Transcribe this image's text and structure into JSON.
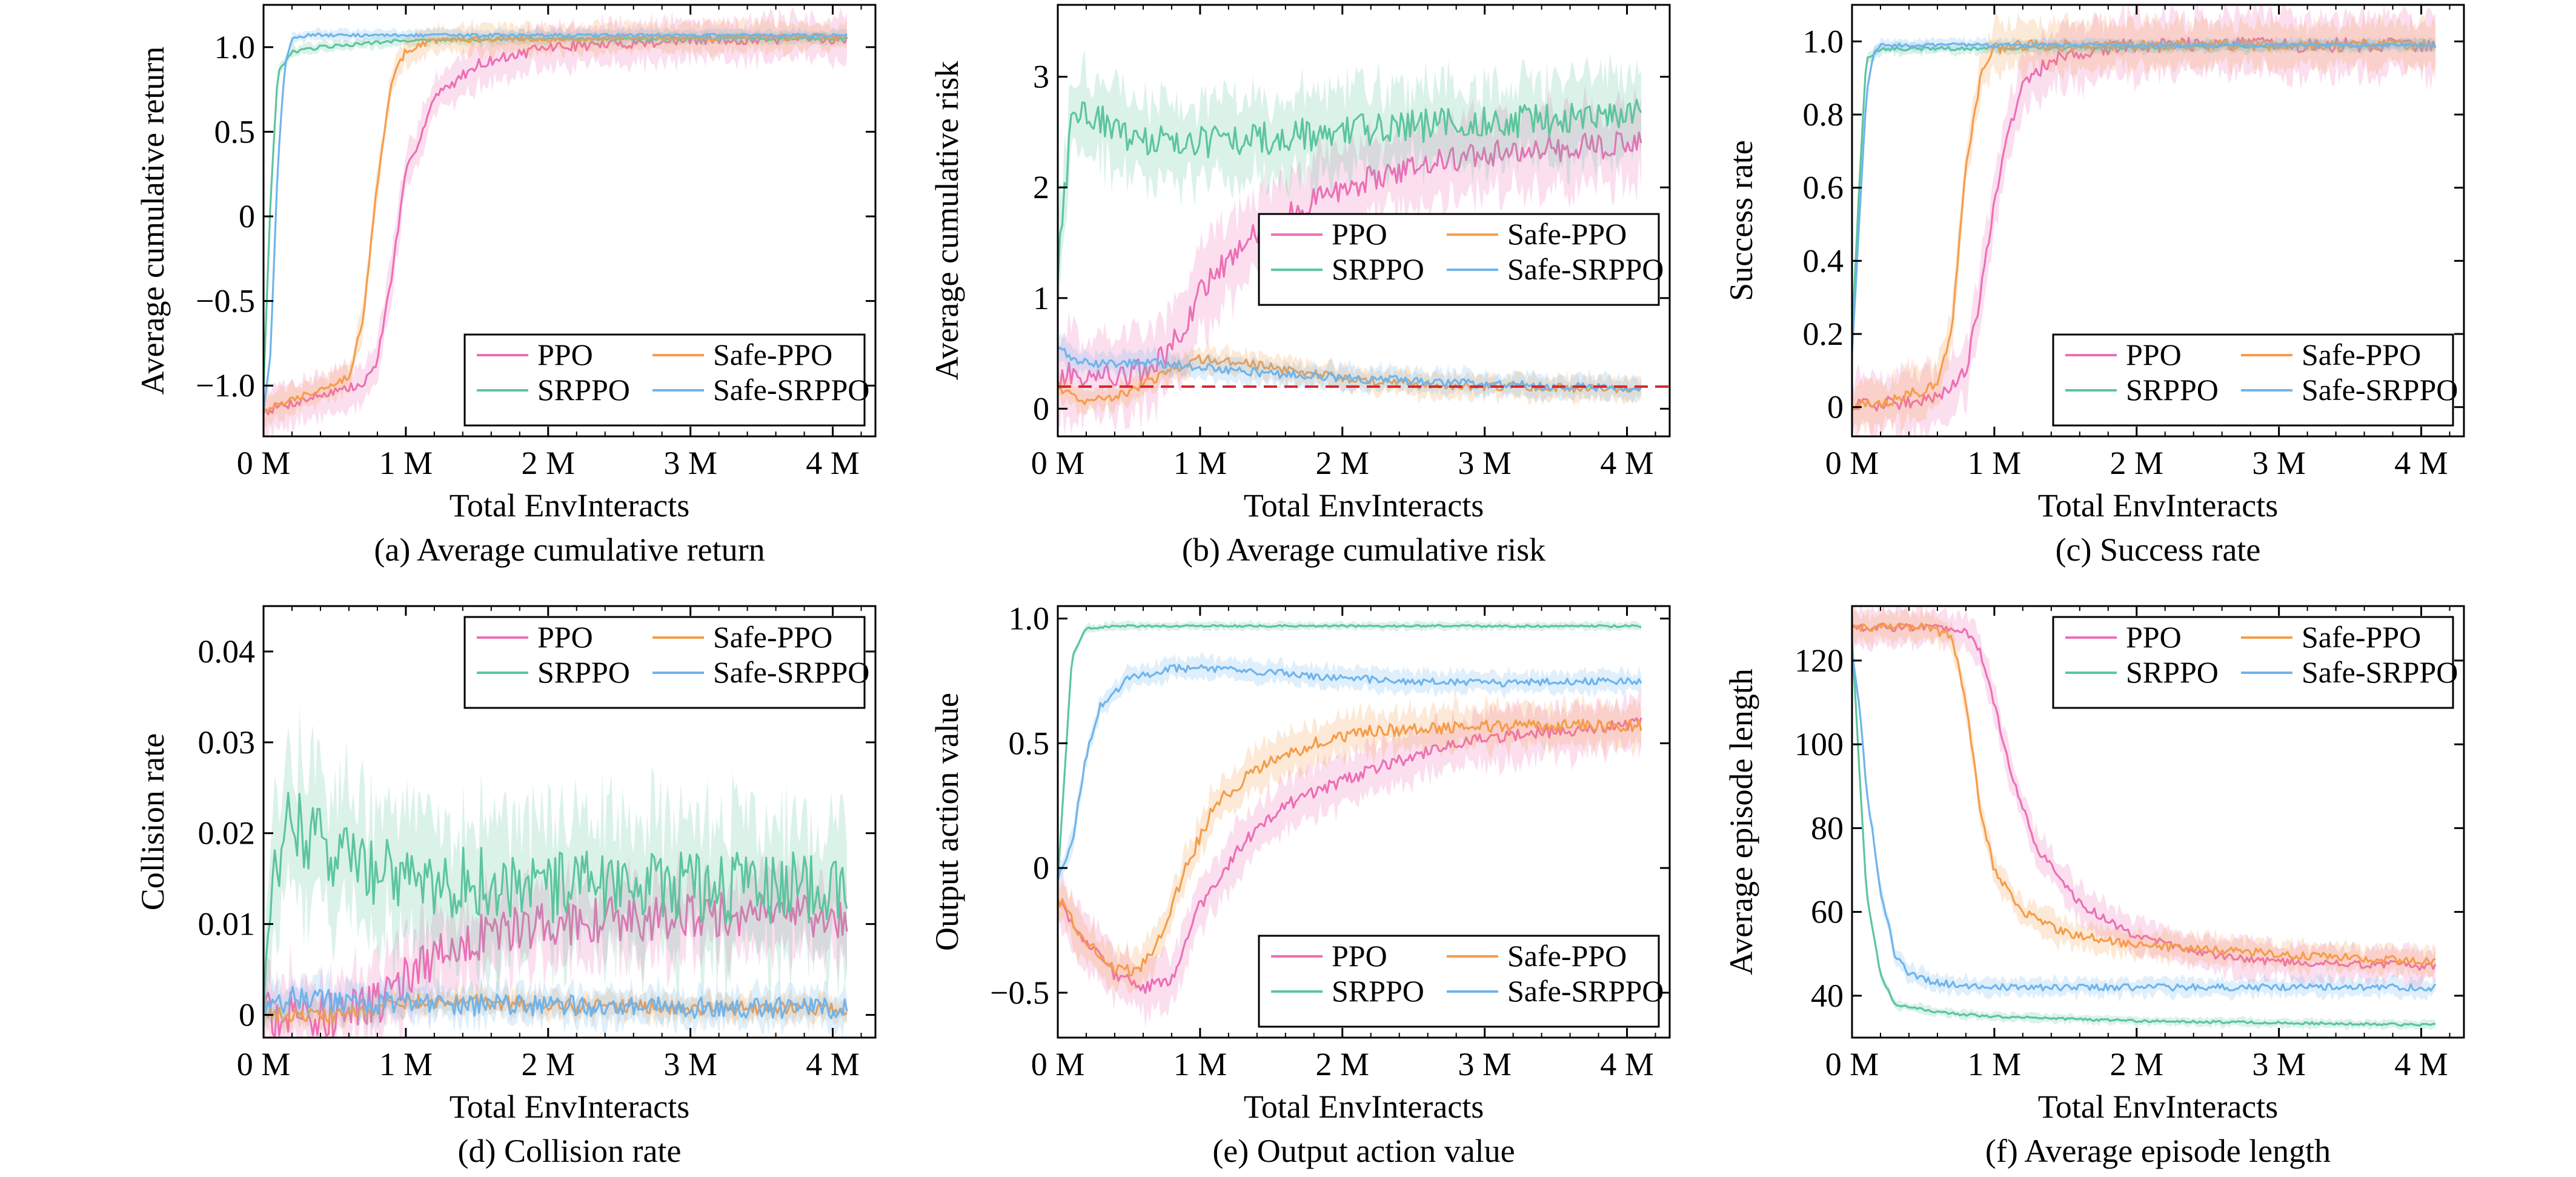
{
  "colors": {
    "PPO": "#ec6fb6",
    "SRPPO": "#5cc59d",
    "Safe-PPO": "#f59d4a",
    "Safe-SRPPO": "#6fb4ec",
    "threshold": "#d62728"
  },
  "chart_data": [
    {
      "type": "line",
      "caption": "(a) Average cumulative return",
      "xlabel": "Total EnvInteracts",
      "ylabel": "Average cumulative return",
      "xlim": [
        0,
        4.3
      ],
      "ylim": [
        -1.3,
        1.25
      ],
      "xticks": [
        0,
        1,
        2,
        3,
        4
      ],
      "xtick_labels": [
        "0 M",
        "1 M",
        "2 M",
        "3 M",
        "4 M"
      ],
      "yticks": [
        -1.0,
        -0.5,
        0,
        0.5,
        1.0
      ],
      "ytick_labels": [
        "−1.0",
        "−0.5",
        "0",
        "0.5",
        "1.0"
      ],
      "legend": "lower-right",
      "series": [
        {
          "name": "PPO",
          "noise": 0.03,
          "band": 0.12,
          "x": [
            0,
            0.3,
            0.5,
            0.7,
            0.8,
            0.9,
            1.0,
            1.2,
            1.5,
            2.0,
            3.0,
            4.1
          ],
          "y": [
            -1.15,
            -1.08,
            -1.03,
            -1.0,
            -0.85,
            -0.35,
            0.25,
            0.7,
            0.9,
            1.0,
            1.04,
            1.05
          ]
        },
        {
          "name": "SRPPO",
          "noise": 0.01,
          "band": 0.03,
          "x": [
            0,
            0.05,
            0.1,
            0.2,
            0.4,
            1.0,
            2.0,
            4.1
          ],
          "y": [
            -1.0,
            0.1,
            0.85,
            0.97,
            1.0,
            1.04,
            1.05,
            1.05
          ]
        },
        {
          "name": "Safe-PPO",
          "noise": 0.02,
          "band": 0.08,
          "x": [
            0,
            0.3,
            0.6,
            0.7,
            0.8,
            0.9,
            1.0,
            1.2,
            1.5,
            4.1
          ],
          "y": [
            -1.15,
            -1.05,
            -0.95,
            -0.6,
            0.2,
            0.8,
            0.98,
            1.04,
            1.05,
            1.06
          ]
        },
        {
          "name": "Safe-SRPPO",
          "noise": 0.01,
          "band": 0.03,
          "x": [
            0,
            0.05,
            0.1,
            0.15,
            0.2,
            0.3,
            1.0,
            4.1
          ],
          "y": [
            -1.15,
            -0.8,
            0.3,
            0.9,
            1.05,
            1.07,
            1.07,
            1.07
          ]
        }
      ]
    },
    {
      "type": "line",
      "caption": "(b) Average cumulative risk",
      "xlabel": "Total EnvInteracts",
      "ylabel": "Average cumulative risk",
      "xlim": [
        0,
        4.3
      ],
      "ylim": [
        -0.25,
        3.65
      ],
      "xticks": [
        0,
        1,
        2,
        3,
        4
      ],
      "xtick_labels": [
        "0 M",
        "1 M",
        "2 M",
        "3 M",
        "4 M"
      ],
      "yticks": [
        0,
        1,
        2,
        3
      ],
      "ytick_labels": [
        "0",
        "1",
        "2",
        "3"
      ],
      "threshold": 0.2,
      "legend": "center-right",
      "series": [
        {
          "name": "PPO",
          "noise": 0.12,
          "band": 0.35,
          "x": [
            0,
            0.3,
            0.5,
            0.7,
            0.9,
            1.0,
            1.3,
            1.6,
            2.0,
            2.5,
            3.0,
            3.5,
            4.1
          ],
          "y": [
            0.3,
            0.3,
            0.3,
            0.4,
            0.75,
            1.05,
            1.5,
            1.75,
            2.0,
            2.2,
            2.3,
            2.35,
            2.4
          ]
        },
        {
          "name": "SRPPO",
          "noise": 0.15,
          "band": 0.35,
          "x": [
            0,
            0.05,
            0.1,
            0.2,
            0.5,
            1.0,
            1.5,
            2.0,
            2.5,
            3.0,
            3.5,
            4.1
          ],
          "y": [
            1.2,
            2.0,
            2.6,
            2.7,
            2.45,
            2.4,
            2.45,
            2.5,
            2.55,
            2.6,
            2.6,
            2.65
          ]
        },
        {
          "name": "Safe-PPO",
          "noise": 0.04,
          "band": 0.1,
          "x": [
            0,
            0.2,
            0.5,
            0.8,
            1.0,
            1.3,
            1.6,
            2.0,
            2.5,
            3.0,
            4.1
          ],
          "y": [
            0.2,
            0.05,
            0.15,
            0.35,
            0.45,
            0.42,
            0.35,
            0.28,
            0.22,
            0.2,
            0.18
          ]
        },
        {
          "name": "Safe-SRPPO",
          "noise": 0.04,
          "band": 0.1,
          "x": [
            0,
            0.1,
            0.3,
            0.6,
            1.0,
            1.5,
            2.0,
            3.0,
            4.1
          ],
          "y": [
            0.55,
            0.45,
            0.4,
            0.42,
            0.38,
            0.32,
            0.28,
            0.22,
            0.18
          ]
        }
      ]
    },
    {
      "type": "line",
      "caption": "(c) Success rate",
      "xlabel": "Total EnvInteracts",
      "ylabel": "Success rate",
      "xlim": [
        0,
        4.3
      ],
      "ylim": [
        -0.08,
        1.1
      ],
      "xticks": [
        0,
        1,
        2,
        3,
        4
      ],
      "xtick_labels": [
        "0 M",
        "1 M",
        "2 M",
        "3 M",
        "4 M"
      ],
      "yticks": [
        0,
        0.2,
        0.4,
        0.6,
        0.8,
        1.0
      ],
      "ytick_labels": [
        "0",
        "0.2",
        "0.4",
        "0.6",
        "0.8",
        "1.0"
      ],
      "legend": "lower-right",
      "series": [
        {
          "name": "PPO",
          "noise": 0.02,
          "band": 0.08,
          "x": [
            0,
            0.3,
            0.6,
            0.8,
            0.9,
            1.0,
            1.1,
            1.2,
            1.4,
            1.7,
            2.0,
            4.1
          ],
          "y": [
            0.0,
            0.01,
            0.03,
            0.1,
            0.3,
            0.55,
            0.75,
            0.88,
            0.95,
            0.98,
            0.99,
            0.99
          ]
        },
        {
          "name": "SRPPO",
          "noise": 0.005,
          "band": 0.015,
          "x": [
            0,
            0.05,
            0.1,
            0.2,
            0.4,
            4.1
          ],
          "y": [
            0.2,
            0.6,
            0.95,
            0.98,
            0.98,
            0.99
          ]
        },
        {
          "name": "Safe-PPO",
          "noise": 0.015,
          "band": 0.06,
          "x": [
            0,
            0.3,
            0.6,
            0.7,
            0.8,
            0.9,
            1.0,
            1.2,
            4.1
          ],
          "y": [
            0.0,
            0.02,
            0.06,
            0.2,
            0.65,
            0.9,
            0.98,
            0.99,
            0.99
          ]
        },
        {
          "name": "Safe-SRPPO",
          "noise": 0.005,
          "band": 0.015,
          "x": [
            0,
            0.05,
            0.1,
            0.15,
            0.2,
            0.3,
            4.1
          ],
          "y": [
            0.15,
            0.5,
            0.85,
            0.97,
            0.99,
            0.99,
            0.99
          ]
        }
      ]
    },
    {
      "type": "line",
      "caption": "(d) Collision rate",
      "xlabel": "Total EnvInteracts",
      "ylabel": "Collision rate",
      "xlim": [
        0,
        4.3
      ],
      "ylim": [
        -0.0025,
        0.045
      ],
      "xticks": [
        0,
        1,
        2,
        3,
        4
      ],
      "xtick_labels": [
        "0 M",
        "1 M",
        "2 M",
        "3 M",
        "4 M"
      ],
      "yticks": [
        0,
        0.01,
        0.02,
        0.03,
        0.04
      ],
      "ytick_labels": [
        "0",
        "0.01",
        "0.02",
        "0.03",
        "0.04"
      ],
      "legend": "top-right",
      "series": [
        {
          "name": "PPO",
          "noise": 0.0025,
          "band": 0.004,
          "x": [
            0,
            0.5,
            0.8,
            1.0,
            1.3,
            1.6,
            2.0,
            3.0,
            4.1
          ],
          "y": [
            0.0,
            0.0,
            0.001,
            0.004,
            0.007,
            0.009,
            0.01,
            0.011,
            0.011
          ]
        },
        {
          "name": "SRPPO",
          "noise": 0.004,
          "band": 0.007,
          "x": [
            0,
            0.05,
            0.15,
            0.3,
            0.6,
            1.0,
            2.0,
            3.0,
            4.1
          ],
          "y": [
            0.0,
            0.012,
            0.022,
            0.02,
            0.017,
            0.015,
            0.014,
            0.014,
            0.014
          ]
        },
        {
          "name": "Safe-PPO",
          "noise": 0.0008,
          "band": 0.0012,
          "x": [
            0,
            0.5,
            0.8,
            1.0,
            1.5,
            2.0,
            3.0,
            4.1
          ],
          "y": [
            0.0,
            0.0,
            0.0008,
            0.0015,
            0.0015,
            0.001,
            0.0008,
            0.0006
          ]
        },
        {
          "name": "Safe-SRPPO",
          "noise": 0.0012,
          "band": 0.0018,
          "x": [
            0,
            0.2,
            0.5,
            1.0,
            2.0,
            3.0,
            4.1
          ],
          "y": [
            0.0,
            0.002,
            0.0015,
            0.0012,
            0.001,
            0.0008,
            0.0007
          ]
        }
      ]
    },
    {
      "type": "line",
      "caption": "(e) Output action value",
      "xlabel": "Total EnvInteracts",
      "ylabel": "Output action value",
      "xlim": [
        0,
        4.3
      ],
      "ylim": [
        -0.68,
        1.05
      ],
      "xticks": [
        0,
        1,
        2,
        3,
        4
      ],
      "xtick_labels": [
        "0 M",
        "1 M",
        "2 M",
        "3 M",
        "4 M"
      ],
      "yticks": [
        -0.5,
        0,
        0.5,
        1.0
      ],
      "ytick_labels": [
        "−0.5",
        "0",
        "0.5",
        "1.0"
      ],
      "legend": "lower-right",
      "series": [
        {
          "name": "PPO",
          "noise": 0.025,
          "band": 0.1,
          "x": [
            0,
            0.2,
            0.4,
            0.6,
            0.8,
            1.0,
            1.3,
            1.6,
            2.0,
            2.5,
            3.0,
            3.5,
            4.1
          ],
          "y": [
            -0.12,
            -0.3,
            -0.43,
            -0.48,
            -0.45,
            -0.15,
            0.1,
            0.25,
            0.35,
            0.45,
            0.52,
            0.55,
            0.58
          ]
        },
        {
          "name": "SRPPO",
          "noise": 0.004,
          "band": 0.015,
          "x": [
            0,
            0.05,
            0.1,
            0.2,
            0.4,
            1.0,
            4.1
          ],
          "y": [
            -0.05,
            0.4,
            0.85,
            0.96,
            0.97,
            0.97,
            0.97
          ]
        },
        {
          "name": "Safe-PPO",
          "noise": 0.025,
          "band": 0.08,
          "x": [
            0,
            0.2,
            0.4,
            0.55,
            0.7,
            0.9,
            1.1,
            1.4,
            1.8,
            2.2,
            3.0,
            4.1
          ],
          "y": [
            -0.12,
            -0.3,
            -0.4,
            -0.42,
            -0.3,
            0.0,
            0.25,
            0.4,
            0.5,
            0.55,
            0.57,
            0.57
          ]
        },
        {
          "name": "Safe-SRPPO",
          "noise": 0.015,
          "band": 0.04,
          "x": [
            0,
            0.1,
            0.2,
            0.3,
            0.5,
            0.8,
            1.2,
            2.0,
            3.0,
            4.1
          ],
          "y": [
            -0.05,
            0.1,
            0.45,
            0.65,
            0.76,
            0.8,
            0.8,
            0.76,
            0.74,
            0.75
          ]
        }
      ]
    },
    {
      "type": "line",
      "caption": "(f) Average episode length",
      "xlabel": "Total EnvInteracts",
      "ylabel": "Average episode length",
      "xlim": [
        0,
        4.3
      ],
      "ylim": [
        30,
        133
      ],
      "xticks": [
        0,
        1,
        2,
        3,
        4
      ],
      "xtick_labels": [
        "0 M",
        "1 M",
        "2 M",
        "3 M",
        "4 M"
      ],
      "yticks": [
        40,
        60,
        80,
        100,
        120
      ],
      "ytick_labels": [
        "40",
        "60",
        "80",
        "100",
        "120"
      ],
      "legend": "top-right",
      "series": [
        {
          "name": "PPO",
          "noise": 1.0,
          "band": 4,
          "x": [
            0,
            0.5,
            0.8,
            0.9,
            1.0,
            1.1,
            1.3,
            1.6,
            2.0,
            2.5,
            3.0,
            4.1
          ],
          "y": [
            128,
            128,
            127,
            122,
            110,
            95,
            75,
            62,
            54,
            50,
            48,
            47
          ]
        },
        {
          "name": "SRPPO",
          "noise": 0.3,
          "band": 1,
          "x": [
            0,
            0.05,
            0.1,
            0.2,
            0.3,
            0.6,
            1.0,
            2.0,
            4.1
          ],
          "y": [
            125,
            95,
            65,
            45,
            38,
            36,
            35,
            34,
            33
          ]
        },
        {
          "name": "Safe-PPO",
          "noise": 1.0,
          "band": 3,
          "x": [
            0,
            0.5,
            0.7,
            0.8,
            0.9,
            1.0,
            1.2,
            1.5,
            2.0,
            3.0,
            4.1
          ],
          "y": [
            128,
            128,
            126,
            110,
            85,
            70,
            60,
            55,
            52,
            50,
            48
          ]
        },
        {
          "name": "Safe-SRPPO",
          "noise": 0.8,
          "band": 2,
          "x": [
            0,
            0.05,
            0.1,
            0.2,
            0.3,
            0.4,
            0.6,
            1.0,
            2.0,
            4.1
          ],
          "y": [
            122,
            110,
            90,
            65,
            50,
            45,
            43,
            42,
            42,
            42
          ]
        }
      ]
    }
  ]
}
